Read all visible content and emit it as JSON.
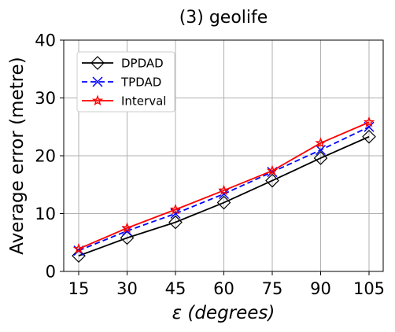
{
  "chart_data": {
    "type": "line",
    "title": "(3) geolife",
    "xlabel_symbol": "ε",
    "xlabel_rest": " (degrees)",
    "ylabel": "Average error (metre)",
    "x": [
      15,
      30,
      45,
      60,
      75,
      90,
      105
    ],
    "xticks": [
      "15",
      "30",
      "45",
      "60",
      "75",
      "90",
      "105"
    ],
    "ylim": [
      0,
      40
    ],
    "yticks": [
      0,
      10,
      20,
      30,
      40
    ],
    "grid": true,
    "legend_position": "top-left",
    "series": [
      {
        "name": "DPDAD",
        "color": "#000000",
        "dash": "solid",
        "marker": "diamond",
        "values": [
          2.7,
          5.8,
          8.5,
          11.9,
          15.7,
          19.6,
          23.3
        ]
      },
      {
        "name": "TPDAD",
        "color": "#0000ff",
        "dash": "dashed",
        "marker": "x",
        "values": [
          3.6,
          7.0,
          10.0,
          13.4,
          17.2,
          21.0,
          25.0
        ]
      },
      {
        "name": "Interval",
        "color": "#ff0000",
        "dash": "solid",
        "marker": "star",
        "values": [
          3.9,
          7.5,
          10.7,
          14.0,
          17.4,
          22.2,
          25.8
        ]
      }
    ]
  }
}
